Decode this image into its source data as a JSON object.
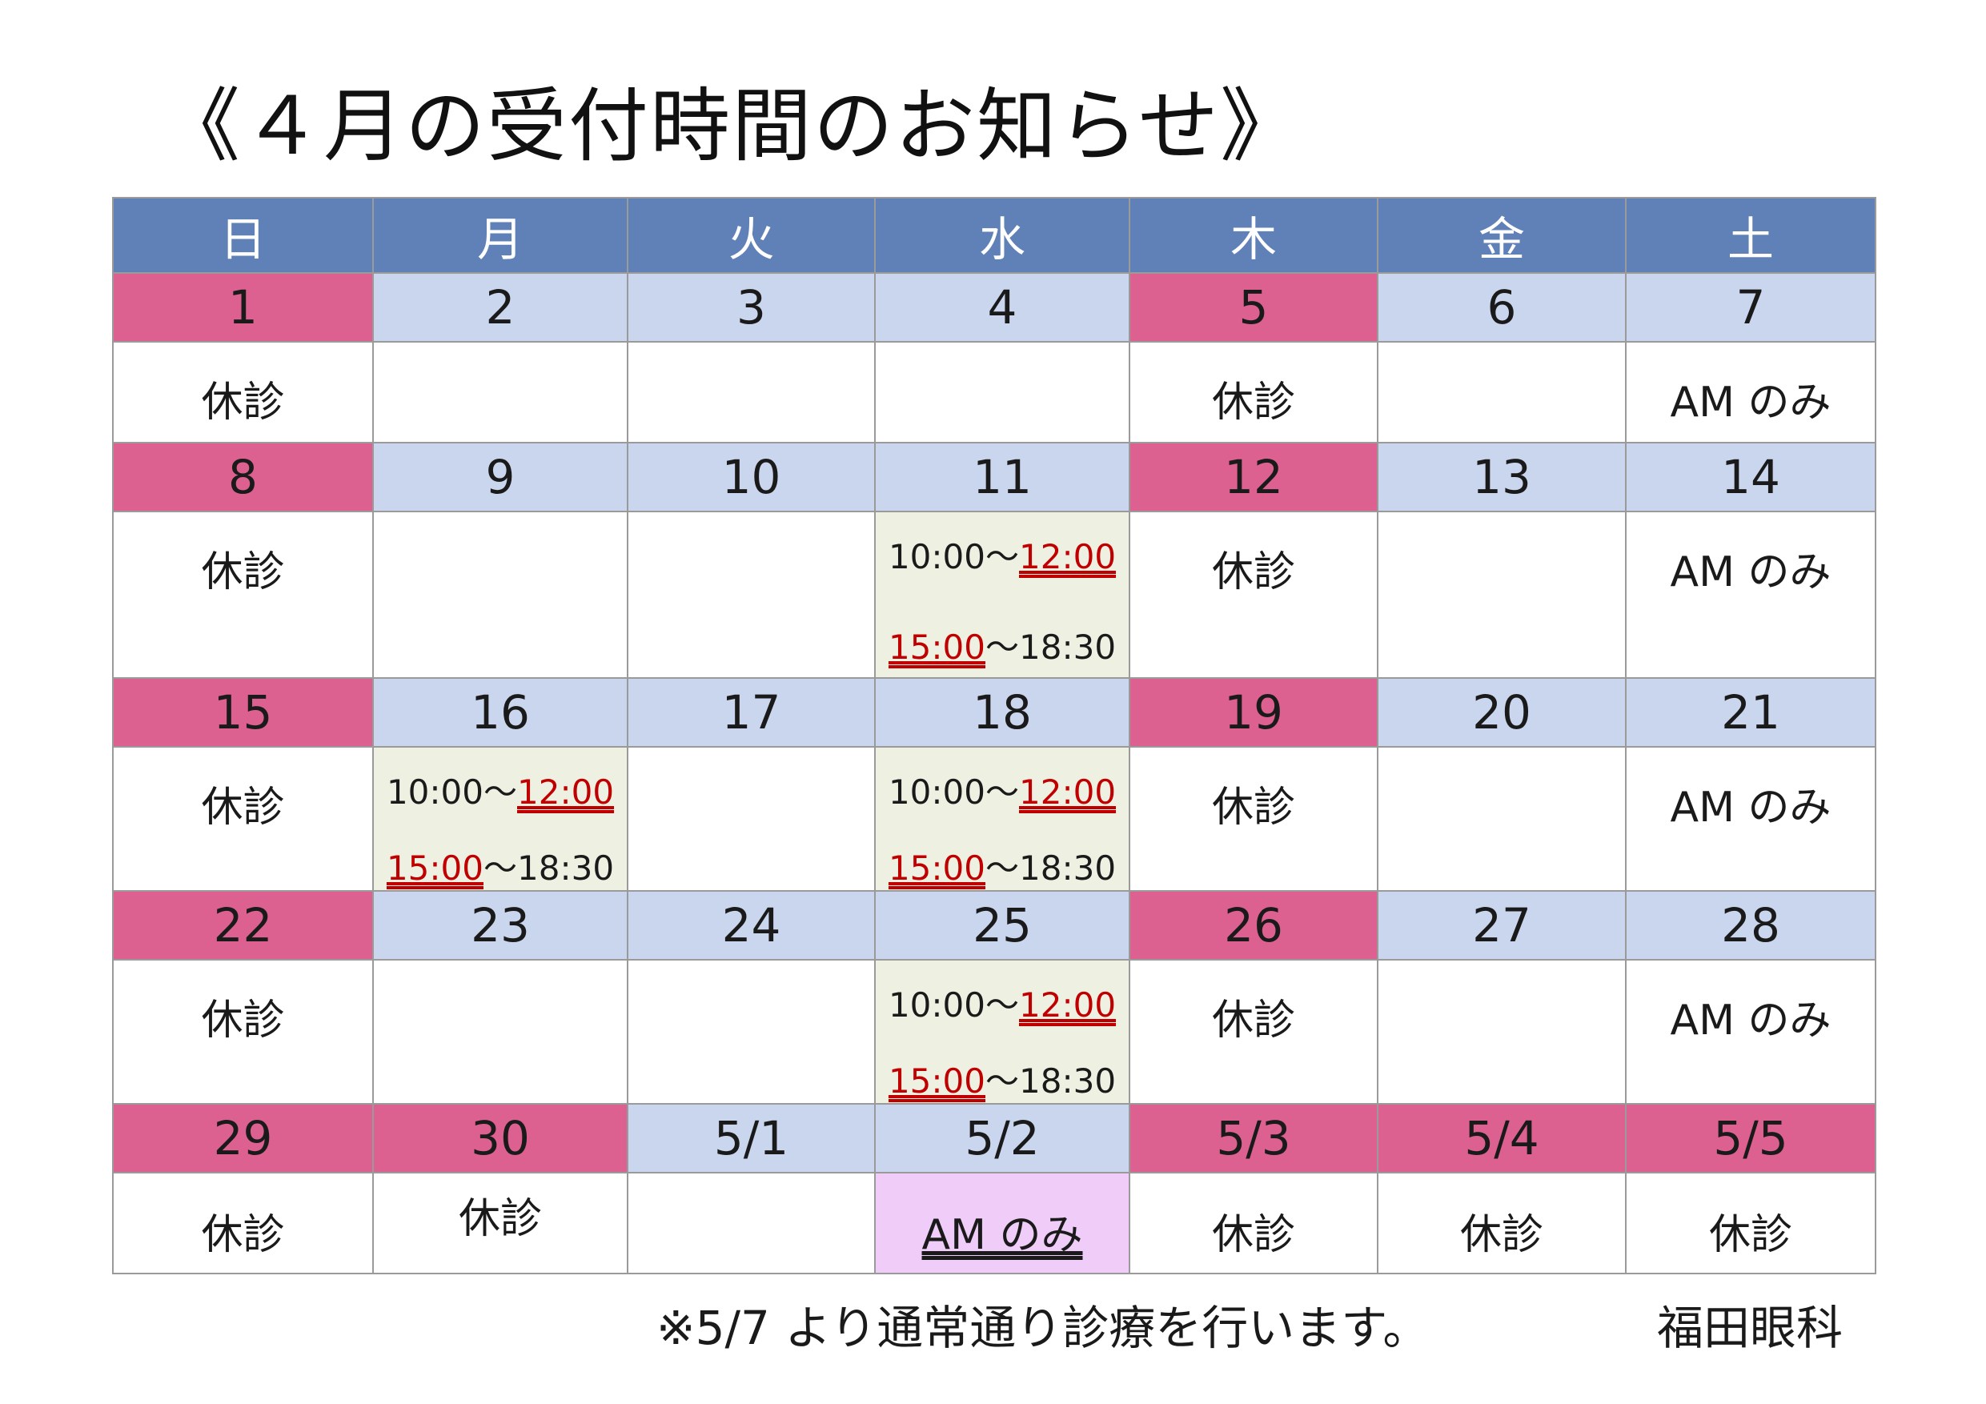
{
  "title": "《４月の受付時間のお知らせ》",
  "weekdays": [
    "日",
    "月",
    "火",
    "水",
    "木",
    "金",
    "土"
  ],
  "colors": {
    "header": "#6080b8",
    "closed_day": "#dc6090",
    "open_day": "#c9d6ee",
    "hours_cell": "#eef1e2",
    "special_cell": "#f0ccf8",
    "highlight_time": "#c00000"
  },
  "weeks": [
    {
      "days": [
        "1",
        "2",
        "3",
        "4",
        "5",
        "6",
        "7"
      ],
      "notes": [
        "休診",
        "",
        "",
        "",
        "休診",
        "",
        "AM のみ"
      ]
    },
    {
      "days": [
        "8",
        "9",
        "10",
        "11",
        "12",
        "13",
        "14"
      ],
      "notes": [
        "休診",
        "",
        "",
        "",
        "休診",
        "",
        "AM のみ"
      ]
    },
    {
      "days": [
        "15",
        "16",
        "17",
        "18",
        "19",
        "20",
        "21"
      ],
      "notes": [
        "休診",
        "",
        "",
        "",
        "休診",
        "",
        "AM のみ"
      ]
    },
    {
      "days": [
        "22",
        "23",
        "24",
        "25",
        "26",
        "27",
        "28"
      ],
      "notes": [
        "休診",
        "",
        "",
        "",
        "休診",
        "",
        "AM のみ"
      ]
    },
    {
      "days": [
        "29",
        "30",
        "5/1",
        "5/2",
        "5/3",
        "5/4",
        "5/5"
      ],
      "notes": [
        "休診",
        "休診",
        "",
        "AM のみ",
        "休診",
        "休診",
        "休診"
      ]
    }
  ],
  "hours": {
    "am_start": "10:00～",
    "am_end": "12:00",
    "pm_start": "15:00",
    "pm_end": "～18:30"
  },
  "footer": {
    "note": "※5/7 より通常通り診療を行います。",
    "clinic": "福田眼科"
  }
}
